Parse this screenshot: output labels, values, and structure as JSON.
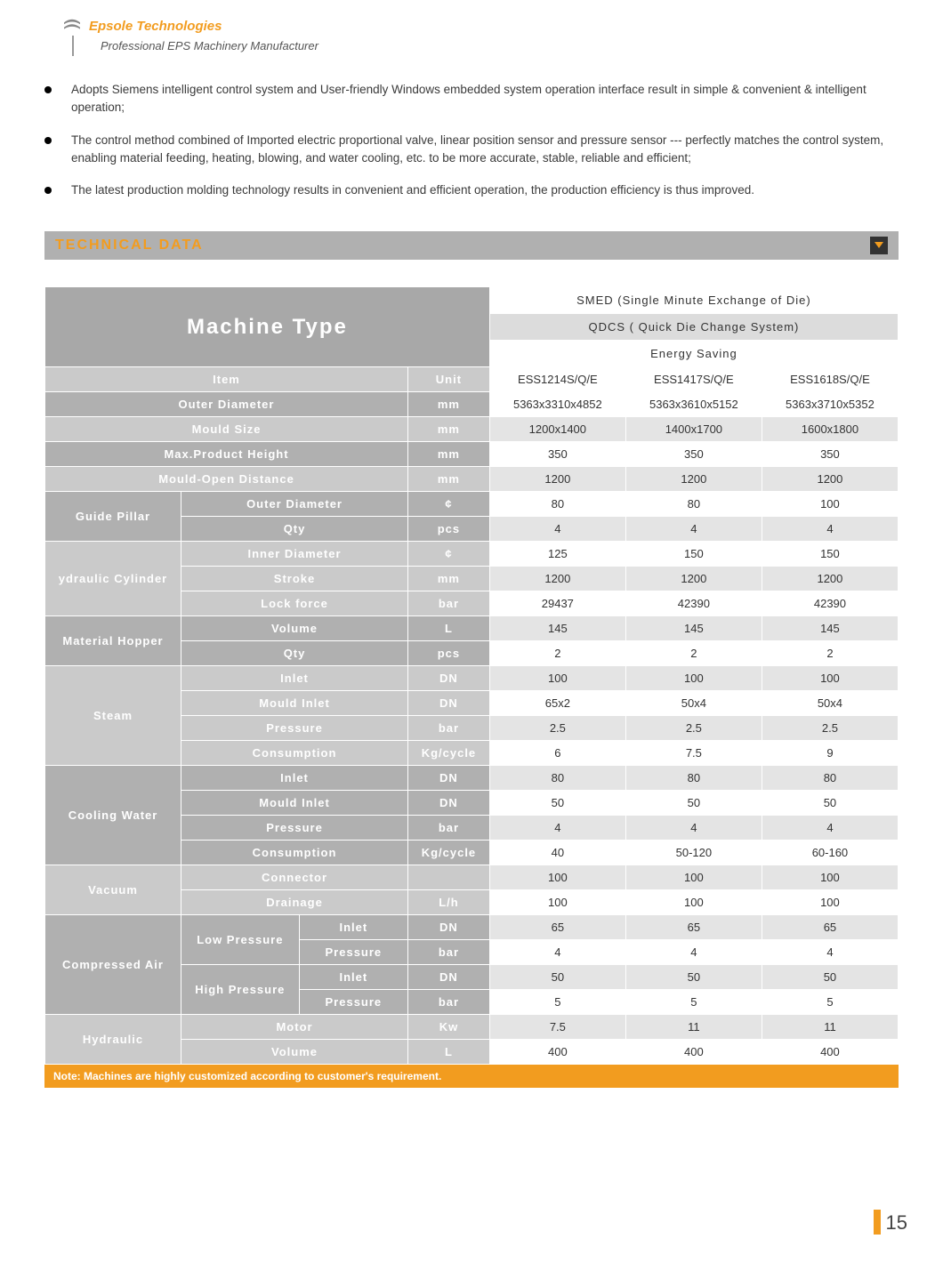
{
  "header": {
    "brand": "Epsole Technologies",
    "subtitle": "Professional EPS Machinery Manufacturer"
  },
  "bullets": [
    "Adopts Siemens intelligent control system and User-friendly Windows embedded system operation interface result in simple & convenient & intelligent operation;",
    "The control method combined of Imported electric proportional valve, linear position sensor and pressure sensor --- perfectly matches the control system, enabling material feeding, heating, blowing, and water cooling, etc. to be more accurate, stable, reliable and efficient;",
    "The latest production molding technology results in convenient and efficient operation, the production efficiency is thus improved."
  ],
  "section": {
    "title": "TECHNICAL  DATA"
  },
  "table": {
    "machine_type_label": "Machine Type",
    "top_labels": {
      "smed": "SMED    (Single Minute Exchange of Die)",
      "qdcs": "QDCS  ( Quick Die Change System)",
      "energy": "Energy Saving"
    },
    "header": {
      "item": "Item",
      "unit": "Unit",
      "model1": "ESS1214S/Q/E",
      "model2": "ESS1417S/Q/E",
      "model3": "ESS1618S/Q/E"
    },
    "rows": [
      {
        "group": "",
        "sub": "",
        "label": "Outer Diameter",
        "unit": "mm",
        "v": [
          "5363x3310x4852",
          "5363x3610x5152",
          "5363x3710x5352"
        ],
        "style": "dark"
      },
      {
        "group": "",
        "sub": "",
        "label": "Mould Size",
        "unit": "mm",
        "v": [
          "1200x1400",
          "1400x1700",
          "1600x1800"
        ],
        "style": "light"
      },
      {
        "group": "",
        "sub": "",
        "label": "Max.Product Height",
        "unit": "mm",
        "v": [
          "350",
          "350",
          "350"
        ],
        "style": "dark"
      },
      {
        "group": "",
        "sub": "",
        "label": "Mould-Open Distance",
        "unit": "mm",
        "v": [
          "1200",
          "1200",
          "1200"
        ],
        "style": "light"
      },
      {
        "group": "Guide Pillar",
        "sub": "",
        "label": "Outer Diameter",
        "unit": "¢",
        "v": [
          "80",
          "80",
          "100"
        ],
        "style": "dark",
        "group_rows": 2,
        "group_style": "dark"
      },
      {
        "group": "",
        "sub": "",
        "label": "Qty",
        "unit": "pcs",
        "v": [
          "4",
          "4",
          "4"
        ],
        "style": "dark"
      },
      {
        "group": "ydraulic Cylinder",
        "sub": "",
        "label": "Inner Diameter",
        "unit": "¢",
        "v": [
          "125",
          "150",
          "150"
        ],
        "style": "light",
        "group_rows": 3,
        "group_style": "light"
      },
      {
        "group": "",
        "sub": "",
        "label": "Stroke",
        "unit": "mm",
        "v": [
          "1200",
          "1200",
          "1200"
        ],
        "style": "light"
      },
      {
        "group": "",
        "sub": "",
        "label": "Lock force",
        "unit": "bar",
        "v": [
          "29437",
          "42390",
          "42390"
        ],
        "style": "light"
      },
      {
        "group": "Material Hopper",
        "sub": "",
        "label": "Volume",
        "unit": "L",
        "v": [
          "145",
          "145",
          "145"
        ],
        "style": "dark",
        "group_rows": 2,
        "group_style": "dark"
      },
      {
        "group": "",
        "sub": "",
        "label": "Qty",
        "unit": "pcs",
        "v": [
          "2",
          "2",
          "2"
        ],
        "style": "dark"
      },
      {
        "group": "Steam",
        "sub": "",
        "label": "Inlet",
        "unit": "DN",
        "v": [
          "100",
          "100",
          "100"
        ],
        "style": "light",
        "group_rows": 4,
        "group_style": "light"
      },
      {
        "group": "",
        "sub": "",
        "label": "Mould Inlet",
        "unit": "DN",
        "v": [
          "65x2",
          "50x4",
          "50x4"
        ],
        "style": "light"
      },
      {
        "group": "",
        "sub": "",
        "label": "Pressure",
        "unit": "bar",
        "v": [
          "2.5",
          "2.5",
          "2.5"
        ],
        "style": "light"
      },
      {
        "group": "",
        "sub": "",
        "label": "Consumption",
        "unit": "Kg/cycle",
        "v": [
          "6",
          "7.5",
          "9"
        ],
        "style": "light"
      },
      {
        "group": "Cooling Water",
        "sub": "",
        "label": "Inlet",
        "unit": "DN",
        "v": [
          "80",
          "80",
          "80"
        ],
        "style": "dark",
        "group_rows": 4,
        "group_style": "dark"
      },
      {
        "group": "",
        "sub": "",
        "label": "Mould Inlet",
        "unit": "DN",
        "v": [
          "50",
          "50",
          "50"
        ],
        "style": "dark"
      },
      {
        "group": "",
        "sub": "",
        "label": "Pressure",
        "unit": "bar",
        "v": [
          "4",
          "4",
          "4"
        ],
        "style": "dark"
      },
      {
        "group": "",
        "sub": "",
        "label": "Consumption",
        "unit": "Kg/cycle",
        "v": [
          "40",
          "50-120",
          "60-160"
        ],
        "style": "dark"
      },
      {
        "group": "Vacuum",
        "sub": "",
        "label": "Connector",
        "unit": "",
        "v": [
          "100",
          "100",
          "100"
        ],
        "style": "light",
        "group_rows": 2,
        "group_style": "light"
      },
      {
        "group": "",
        "sub": "",
        "label": "Drainage",
        "unit": "L/h",
        "v": [
          "100",
          "100",
          "100"
        ],
        "style": "light"
      },
      {
        "group": "Compressed Air",
        "sub": "Low Pressure",
        "label": "Inlet",
        "unit": "DN",
        "v": [
          "65",
          "65",
          "65"
        ],
        "style": "dark",
        "group_rows": 4,
        "group_style": "dark",
        "sub_rows": 2
      },
      {
        "group": "",
        "sub": "",
        "label": "Pressure",
        "unit": "bar",
        "v": [
          "4",
          "4",
          "4"
        ],
        "style": "dark"
      },
      {
        "group": "",
        "sub": "High Pressure",
        "label": "Inlet",
        "unit": "DN",
        "v": [
          "50",
          "50",
          "50"
        ],
        "style": "dark",
        "sub_rows": 2
      },
      {
        "group": "",
        "sub": "",
        "label": "Pressure",
        "unit": "bar",
        "v": [
          "5",
          "5",
          "5"
        ],
        "style": "dark"
      },
      {
        "group": "Hydraulic",
        "sub": "",
        "label": "Motor",
        "unit": "Kw",
        "v": [
          "7.5",
          "11",
          "11"
        ],
        "style": "light",
        "group_rows": 2,
        "group_style": "light"
      },
      {
        "group": "",
        "sub": "",
        "label": "Volume",
        "unit": "L",
        "v": [
          "400",
          "400",
          "400"
        ],
        "style": "light"
      }
    ],
    "note": "Note:  Machines are highly customized according to customer's requirement."
  },
  "page_number": "15",
  "colors": {
    "accent": "#f29c1f",
    "bar_gray": "#b0b0b0",
    "label_dark": "#b0b0b0",
    "label_light": "#cacaca",
    "val_gray": "#e4e4e4"
  }
}
